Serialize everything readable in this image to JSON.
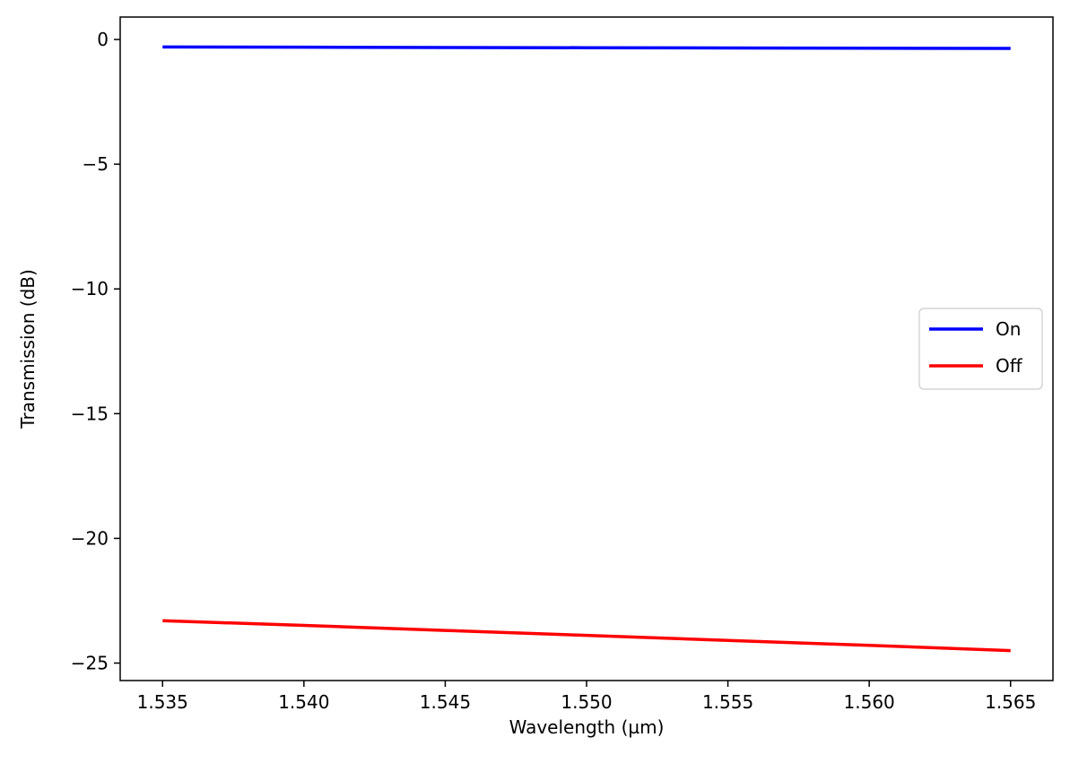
{
  "chart_data": {
    "type": "line",
    "title": "",
    "xlabel": "Wavelength (µm)",
    "ylabel": "Transmission (dB)",
    "xlim": [
      1.5335,
      1.5665
    ],
    "ylim": [
      -25.7,
      0.9
    ],
    "xticks": [
      1.535,
      1.54,
      1.545,
      1.55,
      1.555,
      1.56,
      1.565
    ],
    "xtick_labels": [
      "1.535",
      "1.540",
      "1.545",
      "1.550",
      "1.555",
      "1.560",
      "1.565"
    ],
    "yticks": [
      0,
      -5,
      -10,
      -15,
      -20,
      -25
    ],
    "ytick_labels": [
      "0",
      "−5",
      "−10",
      "−15",
      "−20",
      "−25"
    ],
    "grid": false,
    "legend_position": "center-right",
    "series": [
      {
        "name": "On",
        "color": "#0000ff",
        "x": [
          1.535,
          1.54,
          1.545,
          1.55,
          1.555,
          1.56,
          1.565
        ],
        "y": [
          -0.3,
          -0.31,
          -0.32,
          -0.33,
          -0.34,
          -0.35,
          -0.36
        ]
      },
      {
        "name": "Off",
        "color": "#ff0000",
        "x": [
          1.535,
          1.54,
          1.545,
          1.55,
          1.555,
          1.56,
          1.565
        ],
        "y": [
          -23.3,
          -23.49,
          -23.69,
          -23.89,
          -24.09,
          -24.29,
          -24.5
        ]
      }
    ]
  }
}
